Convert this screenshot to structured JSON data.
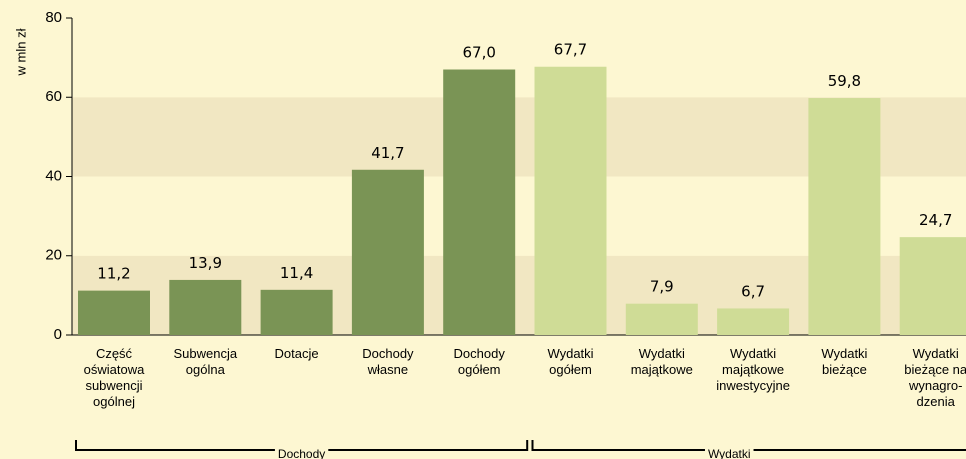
{
  "chart_data": {
    "type": "bar",
    "y_label": "w mln zł",
    "categories": [
      "Część\noświatowa\nsubwencji\nogólnej",
      "Subwencja\nogólna",
      "Dotacje",
      "Dochody\nwłasne",
      "Dochody\nogółem",
      "Wydatki\nogółem",
      "Wydatki\nmajątkowe",
      "Wydatki\nmajątkowe\ninwestycyjne",
      "Wydatki\nbieżące",
      "Wydatki\nbieżące na\nwynagro-\ndzenia"
    ],
    "series": [
      {
        "name": "Dochody",
        "color": "#7a9455",
        "values": [
          11.2,
          13.9,
          11.4,
          41.7,
          67.0,
          null,
          null,
          null,
          null,
          null
        ],
        "value_labels": [
          "11,2",
          "13,9",
          "11,4",
          "41,7",
          "67,0",
          null,
          null,
          null,
          null,
          null
        ]
      },
      {
        "name": "Wydatki",
        "color": "#cfdc96",
        "values": [
          null,
          null,
          null,
          null,
          null,
          67.7,
          7.9,
          6.7,
          59.8,
          24.7
        ],
        "value_labels": [
          null,
          null,
          null,
          null,
          null,
          "67,7",
          "7,9",
          "6,7",
          "59,8",
          "24,7"
        ]
      }
    ],
    "ylim": [
      0,
      80
    ],
    "yticks": [
      0,
      20,
      40,
      60,
      80
    ],
    "grid": true
  }
}
